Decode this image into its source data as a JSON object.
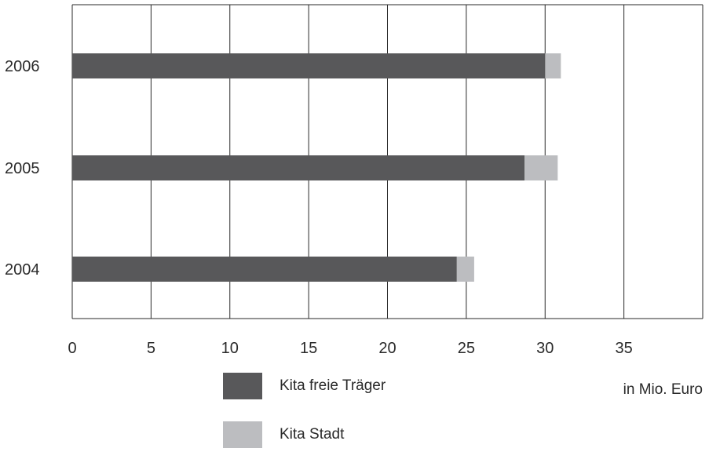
{
  "chart_data": {
    "type": "bar",
    "orientation": "horizontal",
    "stacked": true,
    "categories": [
      "2006",
      "2005",
      "2004"
    ],
    "series": [
      {
        "name": "Kita freie Träger",
        "values": [
          30.0,
          28.7,
          24.4
        ],
        "color": "#58585a"
      },
      {
        "name": "Kita Stadt",
        "values": [
          1.0,
          2.1,
          1.1
        ],
        "color": "#bcbdc0"
      }
    ],
    "xlim": [
      0,
      40
    ],
    "xticks": [
      0,
      5,
      10,
      15,
      20,
      25,
      30,
      35
    ],
    "grid": true,
    "unit_label": "in Mio. Euro",
    "legend_position": "bottom"
  }
}
